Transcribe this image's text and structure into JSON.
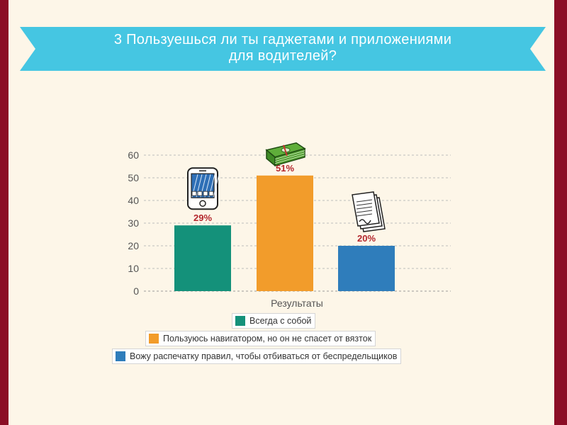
{
  "header": {
    "title_line1": "3 Пользуешься ли ты гаджетами и приложениями",
    "title_line2": "для водителей?",
    "ribbon_color": "#45c6e2",
    "ribbon_shadow": "#2f9fb8"
  },
  "chart_data": {
    "type": "bar",
    "categories": [
      "Результаты"
    ],
    "xlabel": "Результаты",
    "ylabel": "",
    "ylim": [
      0,
      60
    ],
    "yticks": [
      0,
      10,
      20,
      30,
      40,
      50,
      60
    ],
    "grid": true,
    "legend_placement": "bottom",
    "series": [
      {
        "name": "Всегда с собой",
        "values": [
          29
        ],
        "label": "29%",
        "color": "#14917a",
        "icon": "smartphone-icon"
      },
      {
        "name": "Пользуюсь навигатором, но он не спасет от вязток",
        "values": [
          51
        ],
        "label": "51%",
        "color": "#f29c2b",
        "icon": "money-stack-icon"
      },
      {
        "name": "Вожу распечатку правил, чтобы отбиваться от беспредельщиков",
        "values": [
          20
        ],
        "label": "20%",
        "color": "#2f7dbb",
        "icon": "documents-icon"
      }
    ]
  }
}
